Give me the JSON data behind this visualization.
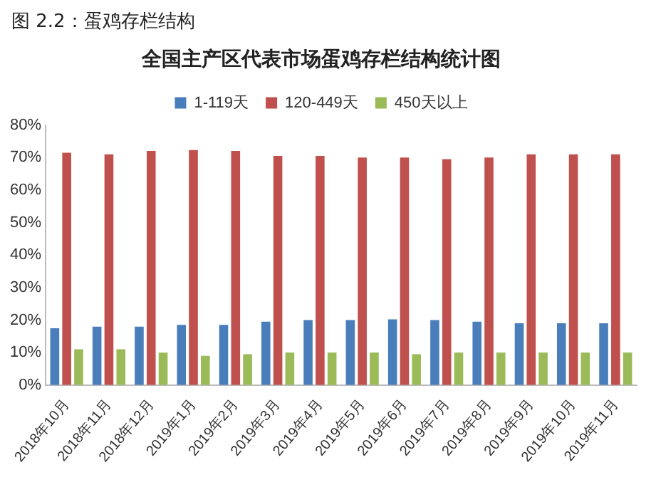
{
  "chart_data": {
    "type": "bar",
    "title": "全国主产区代表市场蛋鸡存栏结构统计图",
    "annotations": [
      "图 2.2：蛋鸡存栏结构"
    ],
    "categories": [
      "2018年10月",
      "2018年11月",
      "2018年12月",
      "2019年1月",
      "2019年2月",
      "2019年3月",
      "2019年4月",
      "2019年5月",
      "2019年6月",
      "2019年7月",
      "2019年8月",
      "2019年9月",
      "2019年10月",
      "2019年11月"
    ],
    "series": [
      {
        "name": "1-119天",
        "color": "#4a7ebb",
        "values": [
          17.5,
          18,
          18,
          18.5,
          18.5,
          19.5,
          20,
          20,
          20.2,
          20,
          19.5,
          19,
          19,
          19
        ]
      },
      {
        "name": "120-449天",
        "color": "#c0504d",
        "values": [
          71.5,
          71,
          72,
          72.3,
          72,
          70.5,
          70.5,
          70,
          70,
          69.5,
          70,
          71,
          71,
          71
        ]
      },
      {
        "name": "450天以上",
        "color": "#9bbb59",
        "values": [
          11,
          11,
          10,
          9,
          9.5,
          10,
          10,
          10,
          9.5,
          10,
          10,
          10,
          10,
          10
        ]
      }
    ],
    "ylim": [
      0,
      80
    ],
    "yticks": [
      {
        "value": 0,
        "label": "0%"
      },
      {
        "value": 10,
        "label": "10%"
      },
      {
        "value": 20,
        "label": "20%"
      },
      {
        "value": 30,
        "label": "30%"
      },
      {
        "value": 40,
        "label": "40%"
      },
      {
        "value": 50,
        "label": "50%"
      },
      {
        "value": 60,
        "label": "60%"
      },
      {
        "value": 70,
        "label": "70%"
      },
      {
        "value": 80,
        "label": "80%"
      }
    ],
    "grid": false,
    "legend": "top"
  }
}
